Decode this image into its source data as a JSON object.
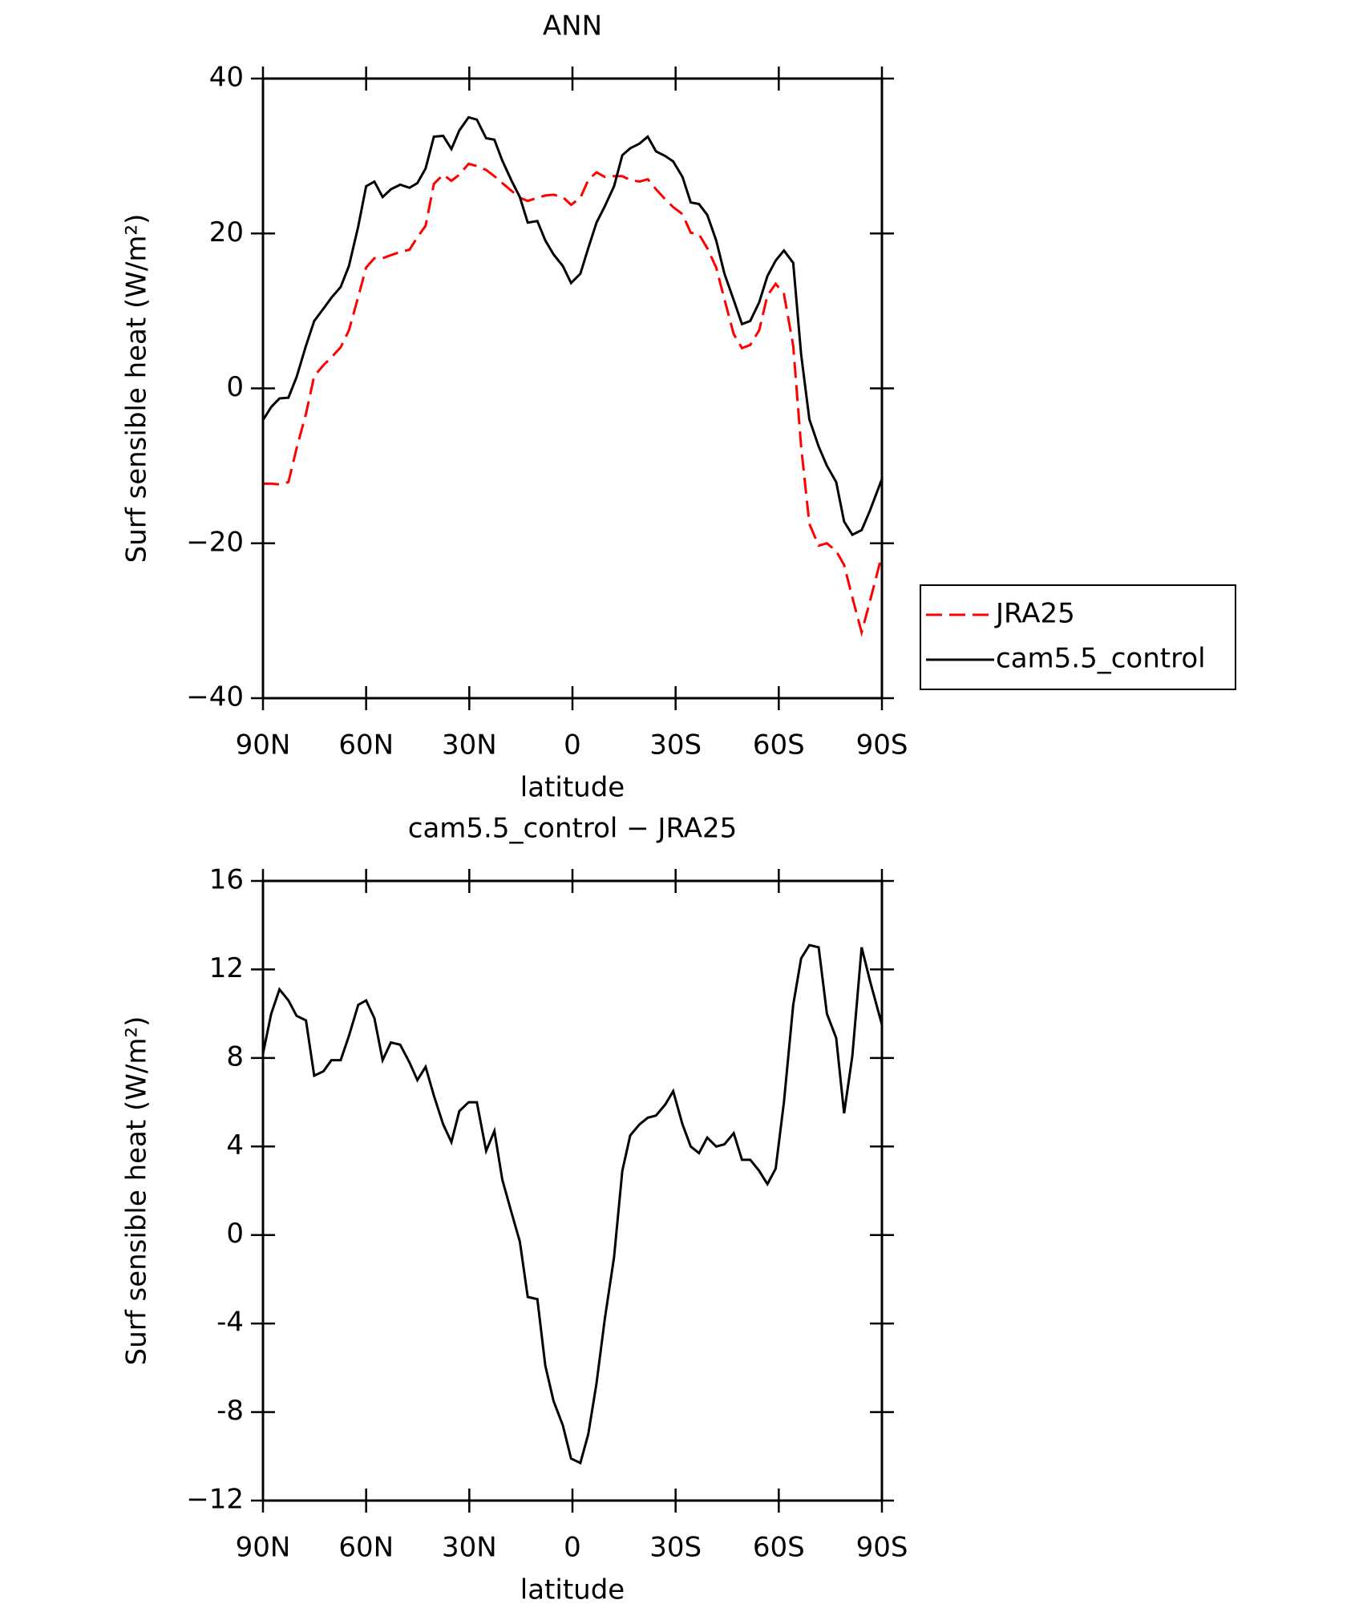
{
  "chart_data": [
    {
      "type": "line",
      "title": "ANN",
      "xlabel": "latitude",
      "ylabel": "Surf sensible heat (W/m²)",
      "x": [
        90,
        87.6,
        85.2,
        82.6,
        80.2,
        77.5,
        75.1,
        72.4,
        70.1,
        67.4,
        65,
        62.3,
        60,
        57.6,
        55.2,
        52.8,
        50.1,
        47.4,
        45.1,
        42.7,
        40.3,
        37.6,
        35.2,
        32.9,
        30.2,
        27.8,
        25.1,
        22.7,
        20.4,
        17.7,
        15.3,
        13,
        10.2,
        7.9,
        5.5,
        2.8,
        0.4,
        -2.3,
        -4.6,
        -7,
        -9.4,
        -12.1,
        -14.5,
        -16.8,
        -19.5,
        -21.9,
        -24.3,
        -27,
        -29.3,
        -32,
        -34.4,
        -36.8,
        -39.2,
        -41.8,
        -44.2,
        -46.9,
        -49.3,
        -51.7,
        -54.3,
        -56.7,
        -59.1,
        -61.5,
        -64.2,
        -66.5,
        -68.9,
        -71.6,
        -74,
        -76.7,
        -79,
        -81.4,
        -84.1,
        -86.5,
        -90
      ],
      "series": [
        {
          "name": "JRA25",
          "color": "#ff0000",
          "dash": true,
          "values": [
            -12.3,
            -12.3,
            -12.4,
            -12.1,
            -7.7,
            -3.3,
            1.6,
            3,
            4,
            5.3,
            7.5,
            11.8,
            15.6,
            16.8,
            16.8,
            17.2,
            17.6,
            17.9,
            19.5,
            21,
            26.4,
            27.6,
            26.8,
            27.6,
            29,
            28.7,
            28.2,
            27.4,
            26.5,
            25.5,
            24.6,
            24.2,
            24.6,
            24.9,
            25,
            24.7,
            23.7,
            24.6,
            26.9,
            27.9,
            27.3,
            27.4,
            27.4,
            26.9,
            26.7,
            27,
            25.7,
            24.4,
            23.4,
            22.5,
            20.1,
            19.9,
            18.1,
            15.6,
            11.5,
            7,
            5.2,
            5.6,
            7.5,
            12,
            13.5,
            12.2,
            5.5,
            -7.5,
            -17.5,
            -20.3,
            -20,
            -21,
            -22.8,
            -27,
            -31.5,
            -27.5,
            -21.5
          ]
        },
        {
          "name": "cam5.5_control",
          "color": "#000000",
          "dash": false,
          "values": [
            -4.1,
            -2.4,
            -1.3,
            -1.2,
            1.5,
            5.5,
            8.7,
            10.3,
            11.7,
            13.1,
            15.8,
            20.9,
            26.1,
            26.7,
            24.7,
            25.7,
            26.3,
            25.9,
            26.5,
            28.4,
            32.5,
            32.6,
            30.9,
            33.3,
            35,
            34.7,
            32.3,
            32.1,
            29.4,
            26.8,
            24.7,
            21.4,
            21.6,
            19.1,
            17.3,
            15.8,
            13.6,
            14.8,
            18.1,
            21.4,
            23.5,
            26.1,
            30.1,
            31,
            31.6,
            32.5,
            30.6,
            30,
            29.3,
            27.3,
            24,
            23.8,
            22.4,
            19.1,
            14.8,
            11.4,
            8.3,
            8.7,
            11.1,
            14.5,
            16.5,
            17.8,
            16.2,
            4.4,
            -4,
            -7.5,
            -10,
            -12.1,
            -17.2,
            -18.9,
            -18.3,
            -15.8,
            -11.7
          ]
        }
      ],
      "xlim": [
        90,
        -90
      ],
      "xticks": [
        {
          "value": 90,
          "label": "90N"
        },
        {
          "value": 60,
          "label": "60N"
        },
        {
          "value": 30,
          "label": "30N"
        },
        0,
        {
          "value": -30,
          "label": "30S"
        },
        {
          "value": -60,
          "label": "60S"
        },
        {
          "value": -90,
          "label": "90S"
        }
      ],
      "ylim": [
        -40,
        40
      ],
      "yticks": [
        {
          "value": -40,
          "label": "−40"
        },
        {
          "value": -20,
          "label": "−20"
        },
        0,
        20,
        40
      ],
      "grid": false,
      "legend": "outside-right"
    },
    {
      "type": "line",
      "title": "cam5.5_control − JRA25",
      "xlabel": "latitude",
      "ylabel": "Surf sensible heat (W/m²)",
      "x": [
        90,
        87.6,
        85.2,
        82.6,
        80.2,
        77.5,
        75.1,
        72.4,
        70.1,
        67.4,
        65,
        62.3,
        60,
        57.6,
        55.2,
        52.8,
        50.1,
        47.4,
        45.1,
        42.7,
        40.3,
        37.6,
        35.2,
        32.9,
        30.2,
        27.8,
        25.1,
        22.7,
        20.4,
        17.7,
        15.3,
        13,
        10.2,
        7.9,
        5.5,
        2.8,
        0.4,
        -2.3,
        -4.6,
        -7,
        -9.4,
        -12.1,
        -14.5,
        -16.8,
        -19.5,
        -21.9,
        -24.3,
        -27,
        -29.3,
        -32,
        -34.4,
        -36.8,
        -39.2,
        -41.8,
        -44.2,
        -46.9,
        -49.3,
        -51.7,
        -54.3,
        -56.7,
        -59.1,
        -61.5,
        -64.2,
        -66.5,
        -68.9,
        -71.6,
        -74,
        -76.7,
        -79,
        -81.4,
        -84.1,
        -86.5,
        -90
      ],
      "series": [
        {
          "color": "#000000",
          "dash": false,
          "values": [
            8.2,
            10,
            11.1,
            10.6,
            9.9,
            9.7,
            7.2,
            7.4,
            7.9,
            7.9,
            9,
            10.4,
            10.6,
            9.8,
            7.9,
            8.7,
            8.6,
            7.8,
            7,
            7.6,
            6.3,
            5,
            4.2,
            5.6,
            6,
            6,
            3.8,
            4.7,
            2.5,
            1,
            -0.3,
            -2.8,
            -2.9,
            -5.9,
            -7.5,
            -8.6,
            -10.1,
            -10.3,
            -9,
            -6.7,
            -3.8,
            -1,
            2.9,
            4.5,
            5,
            5.3,
            5.4,
            5.9,
            6.5,
            5,
            4,
            3.7,
            4.4,
            4,
            4.1,
            4.6,
            3.4,
            3.4,
            2.9,
            2.3,
            3,
            6,
            10.4,
            12.5,
            13.1,
            13,
            10,
            8.9,
            5.5,
            8.1,
            13,
            11.5,
            9.5
          ]
        }
      ],
      "xlim": [
        90,
        -90
      ],
      "xticks": [
        {
          "value": 90,
          "label": "90N"
        },
        {
          "value": 60,
          "label": "60N"
        },
        {
          "value": 30,
          "label": "30N"
        },
        0,
        {
          "value": -30,
          "label": "30S"
        },
        {
          "value": -60,
          "label": "60S"
        },
        {
          "value": -90,
          "label": "90S"
        }
      ],
      "ylim": [
        -12,
        16
      ],
      "yticks": [
        {
          "value": -12,
          "label": "−12"
        },
        -8,
        -4,
        0,
        4,
        8,
        12,
        16
      ],
      "grid": false
    }
  ]
}
